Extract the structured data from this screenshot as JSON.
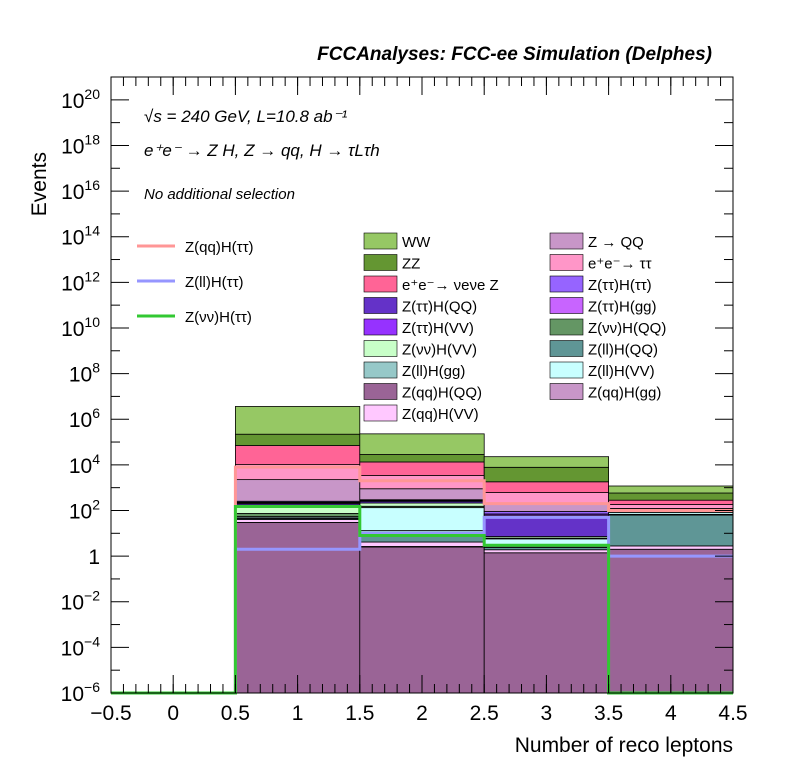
{
  "chart_data": {
    "type": "bar",
    "title": "FCCAnalyses: FCC-ee Simulation (Delphes)",
    "xlabel": "Number of reco leptons",
    "ylabel": "Events",
    "x_scale": "linear",
    "y_scale": "log",
    "xlim": [
      -0.5,
      4.5
    ],
    "ylim": [
      1e-06,
      1e+21
    ],
    "x_ticks": [
      -0.5,
      0,
      0.5,
      1,
      1.5,
      2,
      2.5,
      3,
      3.5,
      4,
      4.5
    ],
    "x_tick_labels": [
      "−0.5",
      "0",
      "0.5",
      "1",
      "1.5",
      "2",
      "2.5",
      "3",
      "3.5",
      "4",
      "4.5"
    ],
    "y_ticks": [
      {
        "value": 1e-06,
        "base": "10",
        "exp": "−6"
      },
      {
        "value": 0.0001,
        "base": "10",
        "exp": "−4"
      },
      {
        "value": 0.01,
        "base": "10",
        "exp": "−2"
      },
      {
        "value": 1,
        "base": "1",
        "exp": ""
      },
      {
        "value": 100.0,
        "base": "10",
        "exp": "2"
      },
      {
        "value": 10000.0,
        "base": "10",
        "exp": "4"
      },
      {
        "value": 1000000.0,
        "base": "10",
        "exp": "6"
      },
      {
        "value": 100000000.0,
        "base": "10",
        "exp": "8"
      },
      {
        "value": 10000000000.0,
        "base": "10",
        "exp": "10"
      },
      {
        "value": 1000000000000.0,
        "base": "10",
        "exp": "12"
      },
      {
        "value": 100000000000000.0,
        "base": "10",
        "exp": "14"
      },
      {
        "value": 1e+16,
        "base": "10",
        "exp": "16"
      },
      {
        "value": 1e+18,
        "base": "10",
        "exp": "18"
      },
      {
        "value": 1e+20,
        "base": "10",
        "exp": "20"
      }
    ],
    "annotations": {
      "energy_line": "√s = 240 GeV, L=10.8 ab⁻¹",
      "process_line": "e⁺e⁻ → Z H, Z → qq, H → τLτh",
      "selection_line": "No additional selection"
    },
    "bin_edges": [
      -0.5,
      0.5,
      1.5,
      2.5,
      3.5,
      4.5
    ],
    "stack_order_bottom_to_top": "listed order",
    "stacked_series": [
      {
        "name": "Z(qq)H(QQ)",
        "color": "#9a6496",
        "values": [
          0,
          30,
          2.5,
          1.4,
          2
        ]
      },
      {
        "name": "Z(qq)H(gg)",
        "color": "#c896c8",
        "values": [
          0,
          0,
          0.15,
          0,
          0
        ]
      },
      {
        "name": "Z(qq)H(VV)",
        "color": "#ffc8ff",
        "values": [
          0,
          10,
          1.5,
          0.5,
          0.8
        ]
      },
      {
        "name": "Z(ll)H(QQ)",
        "color": "#5f9696",
        "values": [
          0,
          5,
          6,
          0.5,
          60
        ]
      },
      {
        "name": "Z(ll)H(gg)",
        "color": "#96c8c8",
        "values": [
          0,
          3,
          3,
          0.3,
          5
        ]
      },
      {
        "name": "Z(ll)H(VV)",
        "color": "#c8ffff",
        "values": [
          0,
          6,
          120,
          3,
          15
        ]
      },
      {
        "name": "Z(νν)H(QQ)",
        "color": "#649664",
        "values": [
          0,
          20,
          20,
          0.5,
          3
        ]
      },
      {
        "name": "Z(νν)H(VV)",
        "color": "#c8ffc8",
        "values": [
          0,
          60,
          60,
          1,
          3
        ]
      },
      {
        "name": "Z(ττ)H(QQ)",
        "color": "#6432c8",
        "values": [
          0,
          60,
          40,
          40,
          8
        ]
      },
      {
        "name": "Z(ττ)H(gg)",
        "color": "#c864ff",
        "values": [
          0,
          20,
          15,
          15,
          3
        ]
      },
      {
        "name": "Z(ττ)H(VV)",
        "color": "#9632ff",
        "values": [
          0,
          15,
          8,
          8,
          2
        ]
      },
      {
        "name": "Z(ττ)H(ττ)",
        "color": "#9664ff",
        "values": [
          0,
          25,
          20,
          20,
          6
        ]
      },
      {
        "name": "Z → QQ",
        "color": "#c896c8",
        "values": [
          0,
          2000,
          600,
          120,
          15
        ]
      },
      {
        "name": "e⁺e⁻ → ττ",
        "color": "#ff96c8",
        "values": [
          0,
          8000,
          2500,
          400,
          60
        ]
      },
      {
        "name": "e⁺e⁻→ νeνe Z",
        "color": "#ff6496",
        "values": [
          0,
          60000,
          10000,
          1200,
          100
        ]
      },
      {
        "name": "ZZ",
        "color": "#649632",
        "values": [
          0,
          150000,
          15000,
          6000,
          300
        ]
      },
      {
        "name": "WW",
        "color": "#96c864",
        "values": [
          0,
          3400000,
          200000,
          15000,
          600
        ]
      }
    ],
    "line_series": [
      {
        "name": "Z(qq)H(ττ)",
        "color": "#ff9696",
        "values": [
          1e-06,
          8000,
          2000,
          200,
          100
        ]
      },
      {
        "name": "Z(ll)H(ττ)",
        "color": "#9696ff",
        "values": [
          1e-06,
          2,
          10,
          50,
          1
        ]
      },
      {
        "name": "Z(νν)H(ττ)",
        "color": "#32c832",
        "values": [
          1e-06,
          150,
          8,
          3,
          1e-06
        ]
      }
    ],
    "legend_left": [
      {
        "label": "Z(qq)H(ττ)",
        "color": "#ff9696"
      },
      {
        "label": "Z(ll)H(ττ)",
        "color": "#9696ff"
      },
      {
        "label": "Z(νν)H(ττ)",
        "color": "#32c832"
      }
    ],
    "legend_col1": [
      {
        "label": "WW",
        "color": "#96c864"
      },
      {
        "label": "ZZ",
        "color": "#649632"
      },
      {
        "label": "e⁺e⁻→ νeνe Z",
        "color": "#ff6496"
      },
      {
        "label": "Z(ττ)H(QQ)",
        "color": "#6432c8"
      },
      {
        "label": "Z(ττ)H(VV)",
        "color": "#9632ff"
      },
      {
        "label": "Z(νν)H(VV)",
        "color": "#c8ffc8"
      },
      {
        "label": "Z(ll)H(gg)",
        "color": "#96c8c8"
      },
      {
        "label": "Z(qq)H(QQ)",
        "color": "#9a6496"
      },
      {
        "label": "Z(qq)H(VV)",
        "color": "#ffc8ff"
      }
    ],
    "legend_col2": [
      {
        "label": "Z → QQ",
        "color": "#c896c8"
      },
      {
        "label": "e⁺e⁻→ ττ",
        "color": "#ff96c8"
      },
      {
        "label": "Z(ττ)H(ττ)",
        "color": "#9664ff"
      },
      {
        "label": "Z(ττ)H(gg)",
        "color": "#c864ff"
      },
      {
        "label": "Z(νν)H(QQ)",
        "color": "#649664"
      },
      {
        "label": "Z(ll)H(QQ)",
        "color": "#5f9696"
      },
      {
        "label": "Z(ll)H(VV)",
        "color": "#c8ffff"
      },
      {
        "label": "Z(qq)H(gg)",
        "color": "#c896c8"
      }
    ]
  }
}
